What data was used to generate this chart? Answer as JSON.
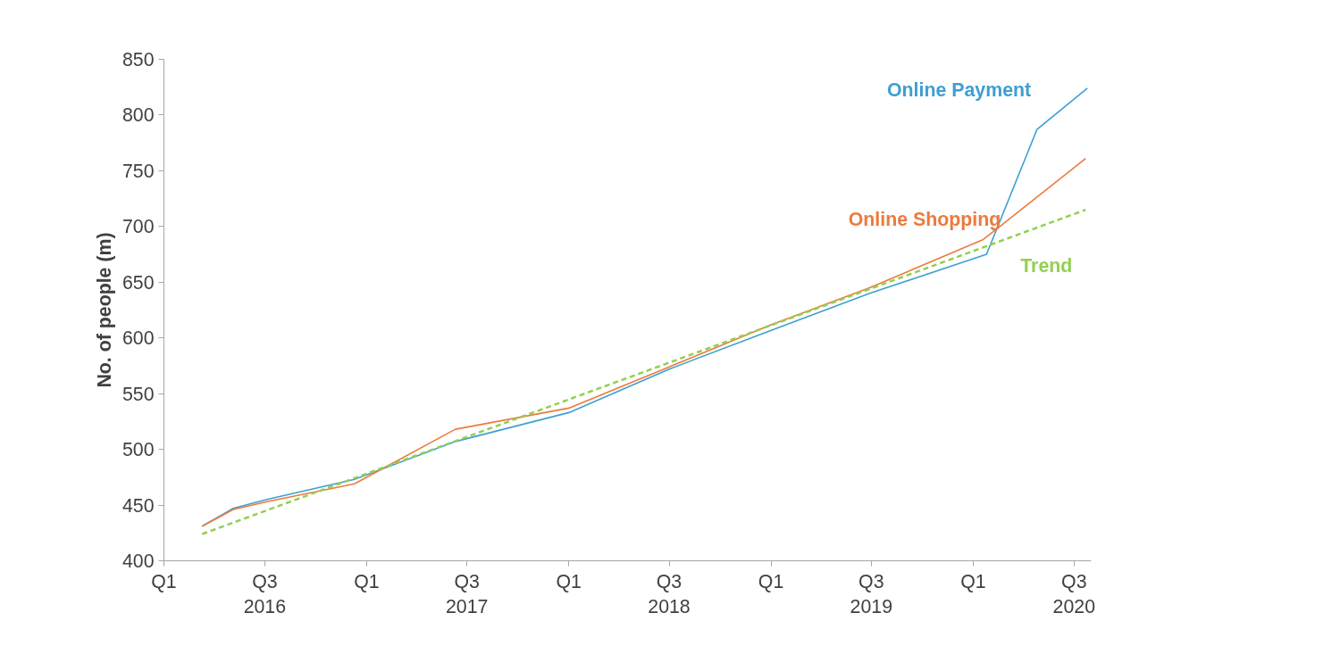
{
  "chart_data": {
    "type": "line",
    "ylabel": "No. of people (m)",
    "xlim": [
      "2016-01-01",
      "2020-08-01"
    ],
    "ylim": [
      400,
      850
    ],
    "xticks": [
      {
        "value": "2016-01-01",
        "label": "Q1"
      },
      {
        "value": "2016-07-01",
        "label": "Q3\n2016"
      },
      {
        "value": "2017-01-01",
        "label": "Q1"
      },
      {
        "value": "2017-07-01",
        "label": "Q3\n2017"
      },
      {
        "value": "2018-01-01",
        "label": "Q1"
      },
      {
        "value": "2018-07-01",
        "label": "Q3\n2018"
      },
      {
        "value": "2019-01-01",
        "label": "Q1"
      },
      {
        "value": "2019-07-01",
        "label": "Q3\n2019"
      },
      {
        "value": "2020-01-01",
        "label": "Q1"
      },
      {
        "value": "2020-07-01",
        "label": "Q3\n2020"
      }
    ],
    "yticks": [
      400,
      450,
      500,
      550,
      600,
      650,
      700,
      750,
      800,
      850
    ],
    "grid": false,
    "series": [
      {
        "name": "Online Payment",
        "color": "#3d9fd3",
        "x": [
          "2016-03-10",
          "2016-05-05",
          "2016-07-05",
          "2016-12-10",
          "2017-06-10",
          "2018-01-01",
          "2018-07-01",
          "2018-12-28",
          "2019-06-28",
          "2020-01-25",
          "2020-04-25",
          "2020-07-25"
        ],
        "values": [
          431,
          447,
          455,
          473,
          507,
          533,
          572,
          606,
          640,
          675,
          787,
          824
        ]
      },
      {
        "name": "Online Shopping",
        "color": "#ec7a3c",
        "x": [
          "2016-03-10",
          "2016-05-05",
          "2016-07-05",
          "2016-12-10",
          "2017-06-10",
          "2018-01-01",
          "2018-07-01",
          "2018-12-28",
          "2019-06-28",
          "2020-01-18",
          "2020-02-18",
          "2020-07-22"
        ],
        "values": [
          431,
          446,
          453,
          469,
          518,
          537,
          574,
          611,
          645,
          688,
          700,
          761
        ]
      },
      {
        "name": "Trend",
        "color": "#92d050",
        "line_style": "dashed",
        "x": [
          "2016-03-10",
          "2020-07-22"
        ],
        "values": [
          424,
          715
        ]
      }
    ]
  }
}
